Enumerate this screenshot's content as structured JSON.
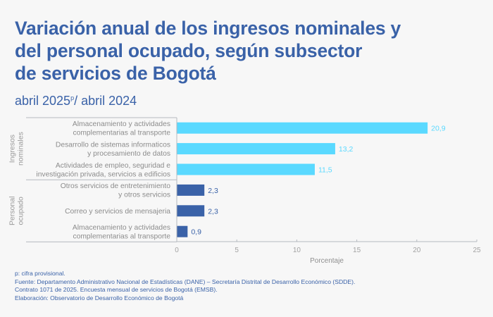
{
  "header": {
    "title_lines": [
      "Variación anual de los ingresos nominales y",
      "del personal ocupado, según subsector",
      "de servicios de Bogotá"
    ],
    "subtitle_main": "abril 2025",
    "subtitle_sup": "p",
    "subtitle_rest": "/ abril 2024"
  },
  "chart_data": {
    "type": "bar",
    "orientation": "horizontal",
    "title": "Variación anual de los ingresos nominales y del personal ocupado, según subsector de servicios de Bogotá",
    "subtitle": "abril 2025p/ abril 2024",
    "xlabel": "Porcentaje",
    "ylabel": "",
    "xlim": [
      0,
      25
    ],
    "xticks": [
      0,
      5,
      10,
      15,
      20,
      25
    ],
    "xtick_labels": [
      "0",
      "5",
      "10",
      "15",
      "20",
      "25"
    ],
    "grid": false,
    "decimal_separator": ",",
    "groups": [
      {
        "name": "Ingresos nominales",
        "name_lines": [
          "Ingresos",
          "nominales"
        ],
        "color": "#5ad9ff",
        "label_color": "#5ad9ff",
        "categories": [
          {
            "lines": [
              "Almacenamiento y actividades",
              "complementarias al transporte"
            ],
            "value": 20.9,
            "label": "20,9"
          },
          {
            "lines": [
              "Desarrollo de sistemas informaticos",
              "y procesamiento de datos"
            ],
            "value": 13.2,
            "label": "13,2"
          },
          {
            "lines": [
              "Actividades de empleo, seguridad e",
              "investigación privada, servicios a edificios"
            ],
            "value": 11.5,
            "label": "11,5"
          }
        ]
      },
      {
        "name": "Personal ocupado",
        "name_lines": [
          "Personal",
          "ocupado"
        ],
        "color": "#3a62a8",
        "label_color": "#3a62a8",
        "categories": [
          {
            "lines": [
              "Otros servicios de entretenimiento",
              "y otros servicios"
            ],
            "value": 2.3,
            "label": "2,3"
          },
          {
            "lines": [
              "Correo y servicios de mensajeria"
            ],
            "value": 2.3,
            "label": "2,3"
          },
          {
            "lines": [
              "Almacenamiento y actividades",
              "complementarias al transporte"
            ],
            "value": 0.9,
            "label": "0,9"
          }
        ]
      }
    ]
  },
  "footnotes": {
    "provisional": "p: cifra provisional.",
    "source_line1": "Fuente: Departamento Administrativo Nacional de Estadísticas (DANE) – Secretaría Distrital de Desarrollo Económico (SDDE).",
    "source_line2": "Contrato 1071 de 2025. Encuesta mensual de servicios de Bogotá (EMSB).",
    "elaboration": "Elaboración: Observatorio de Desarrollo Económico de Bogotá"
  }
}
